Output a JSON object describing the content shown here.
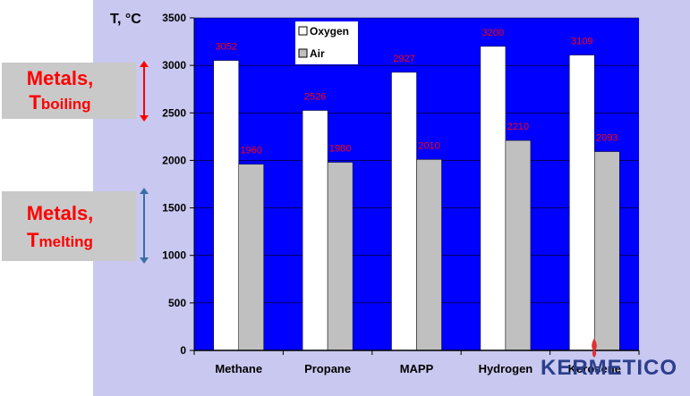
{
  "chart_data": {
    "type": "bar",
    "ylabel": "T, °C",
    "ylim": [
      0,
      3500
    ],
    "yticks": [
      0,
      500,
      1000,
      1500,
      2000,
      2500,
      3000,
      3500
    ],
    "categories": [
      "Methane",
      "Propane",
      "MAPP",
      "Hydrogen",
      "Kerosene"
    ],
    "series": [
      {
        "name": "Oxygen",
        "values": [
          3052,
          2526,
          2927,
          3200,
          3109
        ],
        "color": "#ffffff"
      },
      {
        "name": "Air",
        "values": [
          1960,
          1980,
          2010,
          2210,
          2093
        ],
        "color": "#c0c0c0"
      }
    ],
    "data_labels": {
      "Oxygen": [
        "3052",
        "2526",
        "2927",
        "3200",
        "3109"
      ],
      "Air": [
        "1960",
        "1980",
        "2010",
        "2210",
        "2093"
      ]
    },
    "legend_position": "top-left",
    "plot_background": "#0000ff",
    "label_color": "#ff0000"
  },
  "annotations": {
    "boiling": {
      "line1": "Metals,",
      "line2_main": "T",
      "line2_sub": "boiling",
      "arrow_color": "#ff0000"
    },
    "melting": {
      "line1": "Metals,",
      "line2_main": "T",
      "line2_sub": "melting",
      "arrow_color": "#3a6ea5"
    }
  },
  "logo": {
    "text": "KERMETICO"
  }
}
